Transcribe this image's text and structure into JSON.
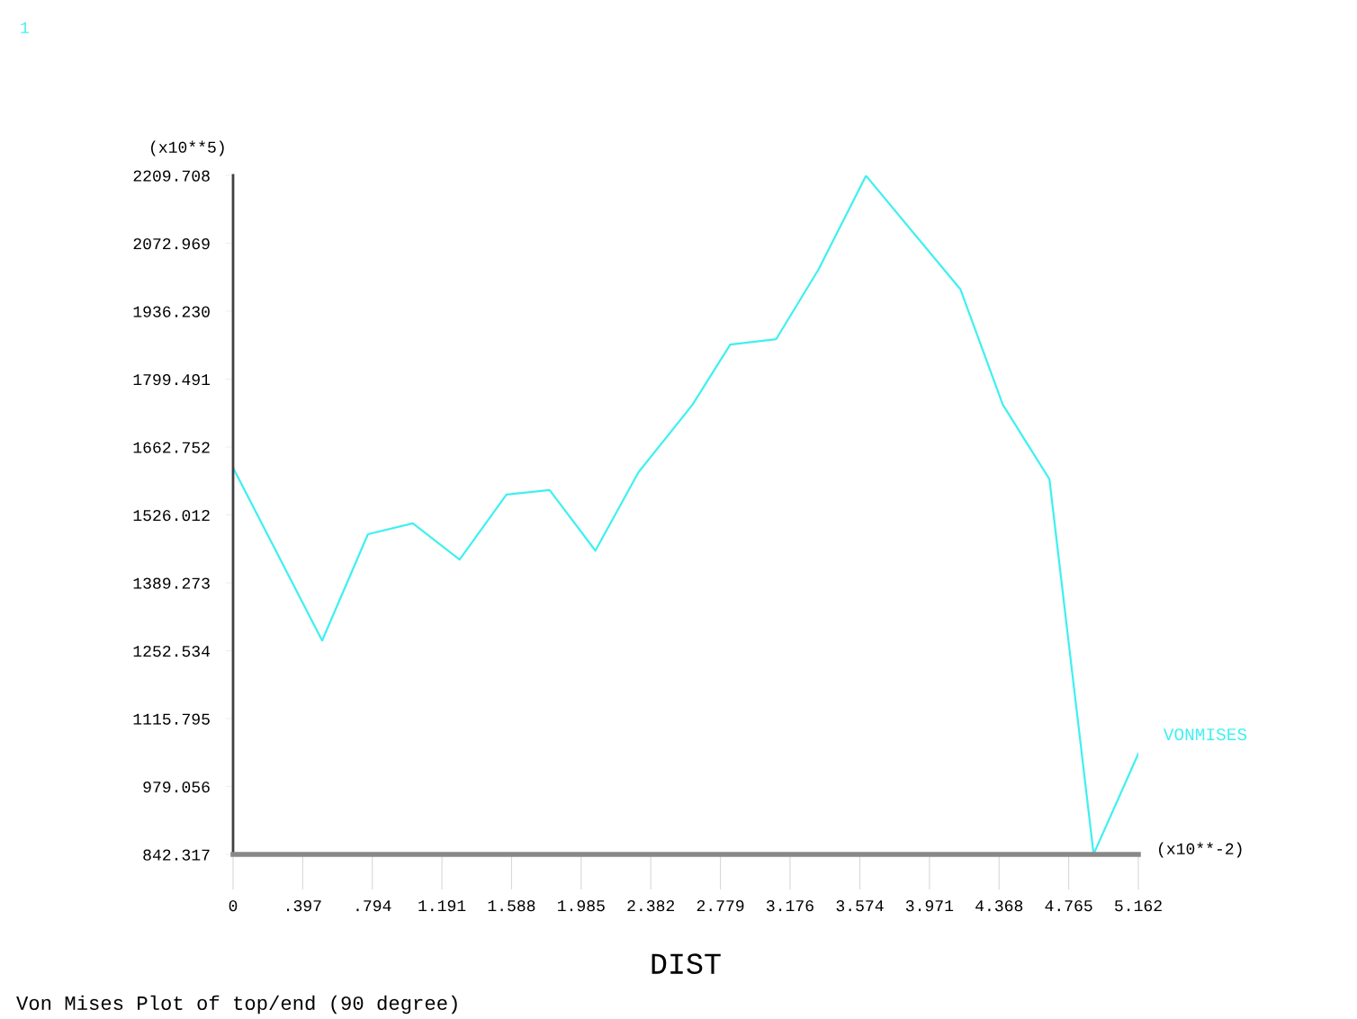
{
  "chart_data": {
    "type": "line",
    "title": "Von Mises Plot of top/end (90 degree)",
    "xlabel": "DIST",
    "annotations": [
      "1",
      "(x10**5)",
      "(x10**-2)"
    ],
    "xlim": [
      0,
      5.162
    ],
    "ylim": [
      842.317,
      2209.708
    ],
    "xticks": [
      0,
      {
        "value": 0.397,
        "label": ".397"
      },
      {
        "value": 0.794,
        "label": ".794"
      },
      1.191,
      1.588,
      1.985,
      2.382,
      2.779,
      3.176,
      3.574,
      3.971,
      4.368,
      4.765,
      5.162
    ],
    "yticks": [
      842.317,
      979.056,
      1115.795,
      1252.534,
      1389.273,
      1526.012,
      1662.752,
      1799.491,
      {
        "value": 1936.23,
        "label": "1936.230"
      },
      2072.969,
      2209.708
    ],
    "grid": false,
    "legend": false,
    "marker": "none",
    "line_style": "solid",
    "series": [
      {
        "name": "VONMISES",
        "color": "#40f0f0",
        "x": [
          0,
          0.508,
          0.769,
          1.025,
          1.292,
          1.559,
          1.805,
          2.066,
          2.312,
          2.62,
          2.835,
          3.097,
          3.338,
          3.609,
          4.148,
          4.389,
          4.655,
          4.907,
          5.162
        ],
        "values": [
          1621,
          1273,
          1487,
          1509,
          1436,
          1567,
          1576,
          1454,
          1612,
          1748,
          1869,
          1880,
          2020,
          2209,
          1980,
          1748,
          1598,
          843,
          1045
        ]
      }
    ]
  }
}
